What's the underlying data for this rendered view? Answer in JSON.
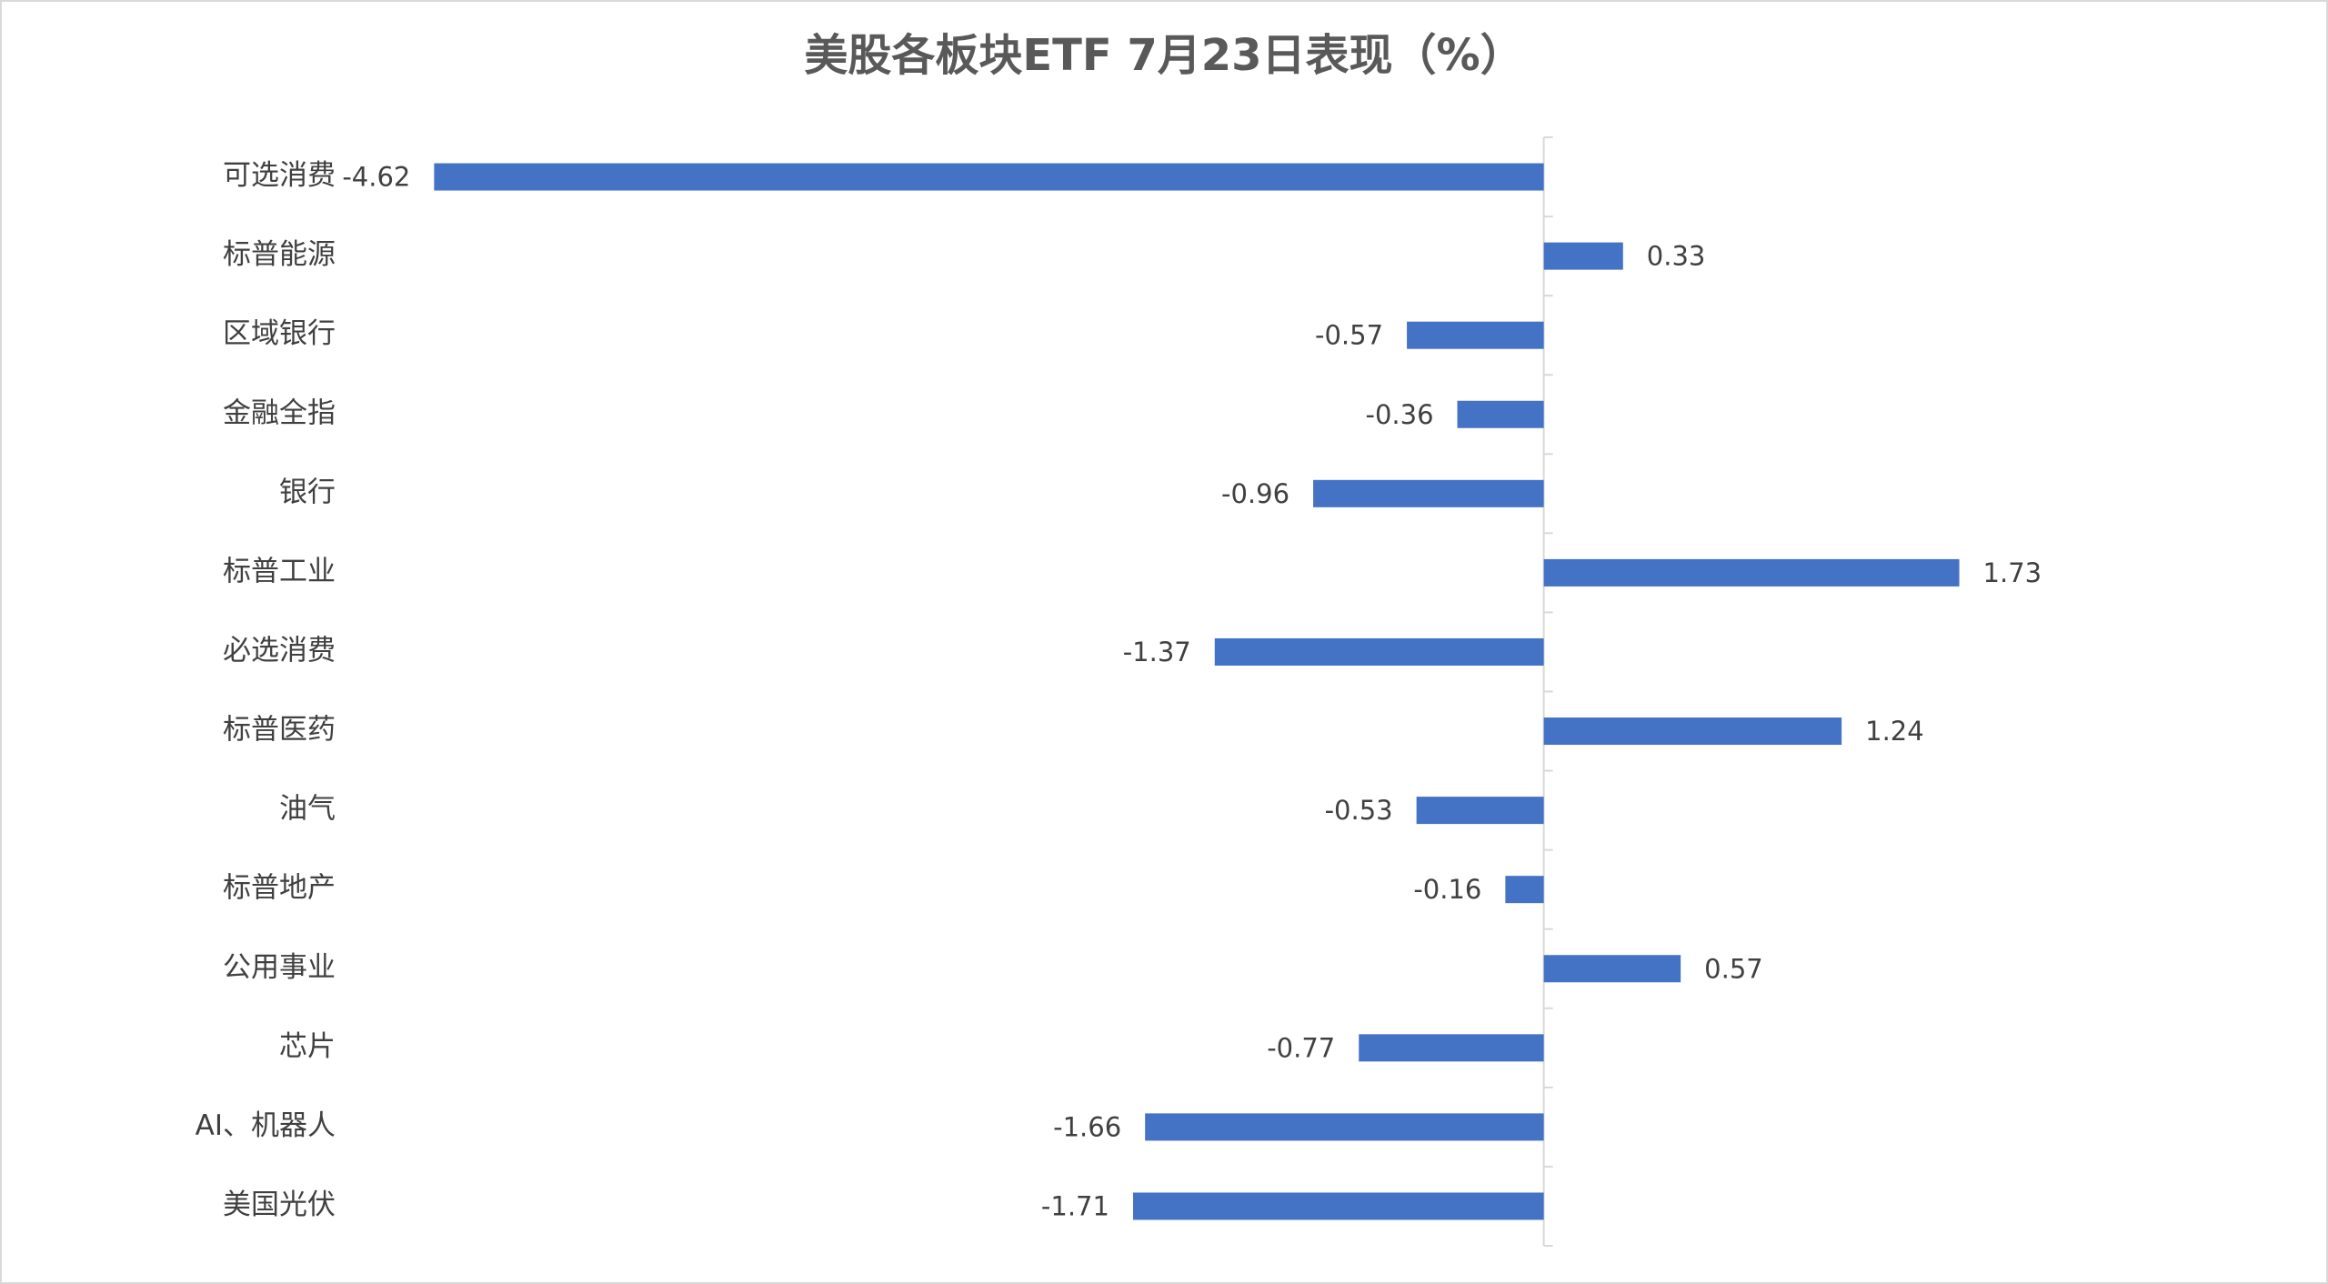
{
  "chart_data": {
    "type": "hbar",
    "title": "美股各板块ETF  7月23日表现（%）",
    "categories": [
      "可选消费",
      "标普能源",
      "区域银行",
      "金融全指",
      "银行",
      "标普工业",
      "必选消费",
      "标普医药",
      "油气",
      "标普地产",
      "公用事业",
      "芯片",
      "AI、机器人",
      "美国光伏"
    ],
    "values": [
      -4.62,
      0.33,
      -0.57,
      -0.36,
      -0.96,
      1.73,
      -1.37,
      1.24,
      -0.53,
      -0.16,
      0.57,
      -0.77,
      -1.66,
      -1.71
    ],
    "color": "#4472c4",
    "xlim": [
      -5,
      3
    ]
  }
}
